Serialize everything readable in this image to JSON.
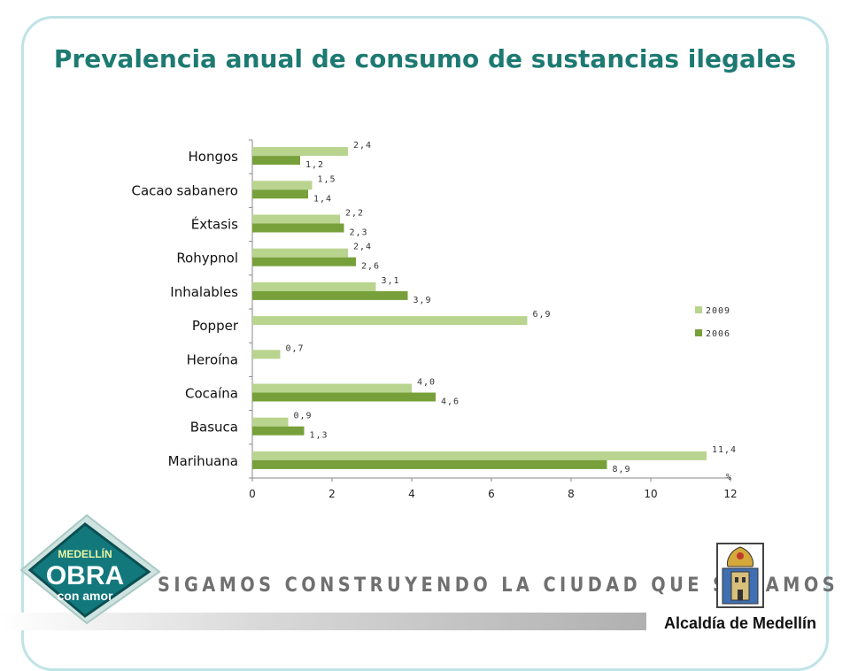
{
  "slide": {
    "title": "Prevalencia anual de consumo de sustancias ilegales",
    "slogan": "SIGAMOS CONSTRUYENDO LA CIUDAD QUE SOÑAMOS",
    "logo": {
      "line1": "MEDELLÍN",
      "line2": "OBRA",
      "line3": "con amor"
    },
    "institution": "Alcaldía de Medellín"
  },
  "colors": {
    "accent": "#1d7a72",
    "series_2009": "#b9d48f",
    "series_2006": "#77a03a",
    "frame": "#bfe3e6"
  },
  "chart_data": {
    "type": "bar",
    "orientation": "horizontal",
    "categories": [
      "Hongos",
      "Cacao sabanero",
      "Éxtasis",
      "Rohypnol",
      "Inhalables",
      "Popper",
      "Heroína",
      "Cocaína",
      "Basuca",
      "Marihuana"
    ],
    "series": [
      {
        "name": "2009",
        "values": [
          2.4,
          1.5,
          2.2,
          2.4,
          3.1,
          6.9,
          0.7,
          4.0,
          0.9,
          11.4
        ],
        "labels": [
          "2,4",
          "1,5",
          "2,2",
          "2,4",
          "3,1",
          "6,9",
          "0,7",
          "4,0",
          "0,9",
          "11,4"
        ]
      },
      {
        "name": "2006",
        "values": [
          1.2,
          1.4,
          2.3,
          2.6,
          3.9,
          null,
          null,
          4.6,
          1.3,
          8.9
        ],
        "labels": [
          "1,2",
          "1,4",
          "2,3",
          "2,6",
          "3,9",
          "",
          "",
          "4,6",
          "1,3",
          "8,9"
        ]
      }
    ],
    "xlim": [
      0,
      12
    ],
    "xticks": [
      "0",
      "2",
      "4",
      "6",
      "8",
      "10",
      "12"
    ],
    "xunit": "%",
    "legend_position": "right",
    "grid": false
  }
}
